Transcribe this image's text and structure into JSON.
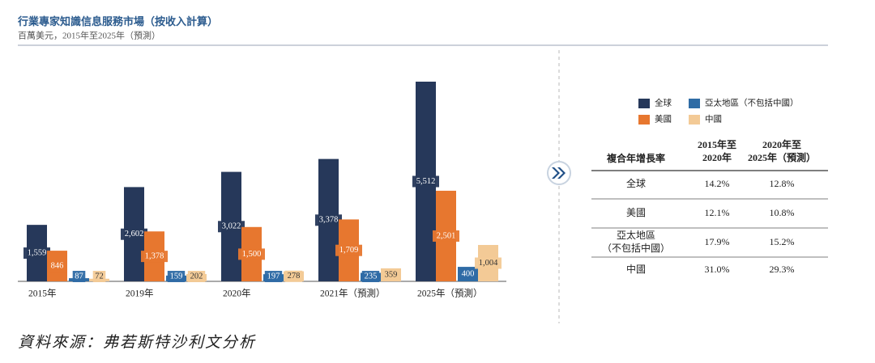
{
  "chart_data": {
    "type": "bar",
    "title": "行業專家知識信息服務市場（按收入計算）",
    "subtitle": "百萬美元，2015年至2025年（預測）",
    "categories": [
      "2015年",
      "2019年",
      "2020年",
      "2021年（預測）",
      "2025年（預測）"
    ],
    "series": [
      {
        "name": "全球",
        "color": "#26385a",
        "values": [
          1559,
          2602,
          3022,
          3378,
          5512
        ],
        "value_labels": [
          "1,559",
          "2,602",
          "3,022",
          "3,378",
          "5,512"
        ]
      },
      {
        "name": "美國",
        "color": "#e7772f",
        "values": [
          846,
          1378,
          1500,
          1709,
          2501
        ],
        "value_labels": [
          "846",
          "1,378",
          "1,500",
          "1,709",
          "2,501"
        ]
      },
      {
        "name": "亞太地區（不包括中國）",
        "color": "#2f6ca5",
        "values": [
          87,
          159,
          197,
          235,
          400
        ],
        "value_labels": [
          "87",
          "159",
          "197",
          "235",
          "400"
        ]
      },
      {
        "name": "中國",
        "color": "#f3ca96",
        "values": [
          72,
          202,
          278,
          359,
          1004
        ],
        "value_labels": [
          "72",
          "202",
          "278",
          "359",
          "1,004"
        ]
      }
    ],
    "source": "資料來源：弗若斯特沙利文分析"
  },
  "table": {
    "columns": [
      [
        "複合年增長率"
      ],
      [
        "2015年至",
        "2020年"
      ],
      [
        "2020年至",
        "2025年（預測）"
      ]
    ],
    "rows": [
      {
        "label": [
          "全球"
        ],
        "values": [
          "14.2%",
          "12.8%"
        ]
      },
      {
        "label": [
          "美國"
        ],
        "values": [
          "12.1%",
          "10.8%"
        ]
      },
      {
        "label": [
          "亞太地區",
          "（不包括中國）"
        ],
        "values": [
          "17.9%",
          "15.2%"
        ]
      },
      {
        "label": [
          "中國"
        ],
        "values": [
          "31.0%",
          "29.3%"
        ]
      }
    ]
  }
}
